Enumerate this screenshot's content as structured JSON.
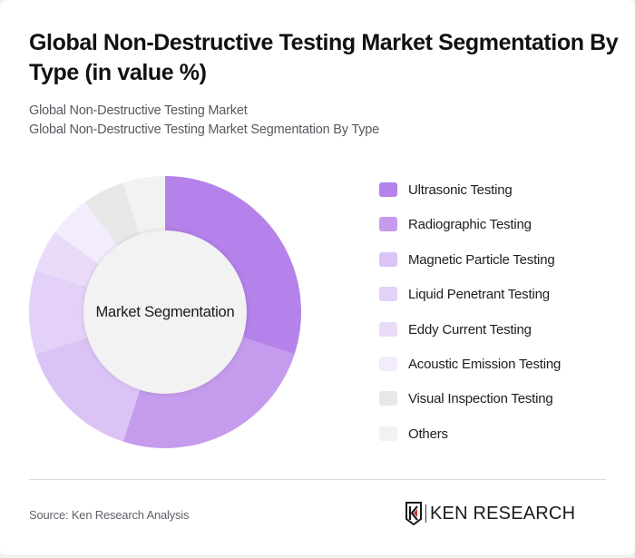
{
  "header": {
    "title": "Global Non-Destructive Testing Market Segmentation By Type (in value %)",
    "subtitle_line1": "Global Non-Destructive Testing Market",
    "subtitle_line2": "Global Non-Destructive Testing Market Segmentation By Type"
  },
  "donut": {
    "center_label": "Market Segmentation"
  },
  "legend": {
    "items": [
      {
        "label": "Ultrasonic Testing",
        "color": "#b482ea"
      },
      {
        "label": "Radiographic Testing",
        "color": "#c59bed"
      },
      {
        "label": "Magnetic Particle Testing",
        "color": "#dcc3f5"
      },
      {
        "label": "Liquid Penetrant Testing",
        "color": "#e4d1f7"
      },
      {
        "label": "Eddy Current Testing",
        "color": "#eadcf9"
      },
      {
        "label": "Acoustic Emission Testing",
        "color": "#f3ecfc"
      },
      {
        "label": "Visual Inspection Testing",
        "color": "#e8e8e8"
      },
      {
        "label": "Others",
        "color": "#f2f2f2"
      }
    ]
  },
  "footer": {
    "source": "Source: Ken Research Analysis",
    "logo_text": "KEN RESEARCH",
    "logo_accent": "#d32f2f"
  },
  "chart_data": {
    "type": "pie",
    "variant": "donut",
    "title": "Global Non-Destructive Testing Market Segmentation By Type (in value %)",
    "subtitle": "Global Non-Destructive Testing Market Segmentation By Type",
    "center_label": "Market Segmentation",
    "categories": [
      "Ultrasonic Testing",
      "Radiographic Testing",
      "Magnetic Particle Testing",
      "Liquid Penetrant Testing",
      "Eddy Current Testing",
      "Acoustic Emission Testing",
      "Visual Inspection Testing",
      "Others"
    ],
    "values": [
      30,
      25,
      15,
      10,
      5,
      5,
      5,
      5
    ],
    "colors": [
      "#b482ea",
      "#c59bed",
      "#dcc3f5",
      "#e4d1f7",
      "#eadcf9",
      "#f3ecfc",
      "#e8e8e8",
      "#f2f2f2"
    ],
    "unit": "%",
    "legend_position": "right",
    "start_angle": "top, clockwise",
    "source": "Source: Ken Research Analysis"
  }
}
